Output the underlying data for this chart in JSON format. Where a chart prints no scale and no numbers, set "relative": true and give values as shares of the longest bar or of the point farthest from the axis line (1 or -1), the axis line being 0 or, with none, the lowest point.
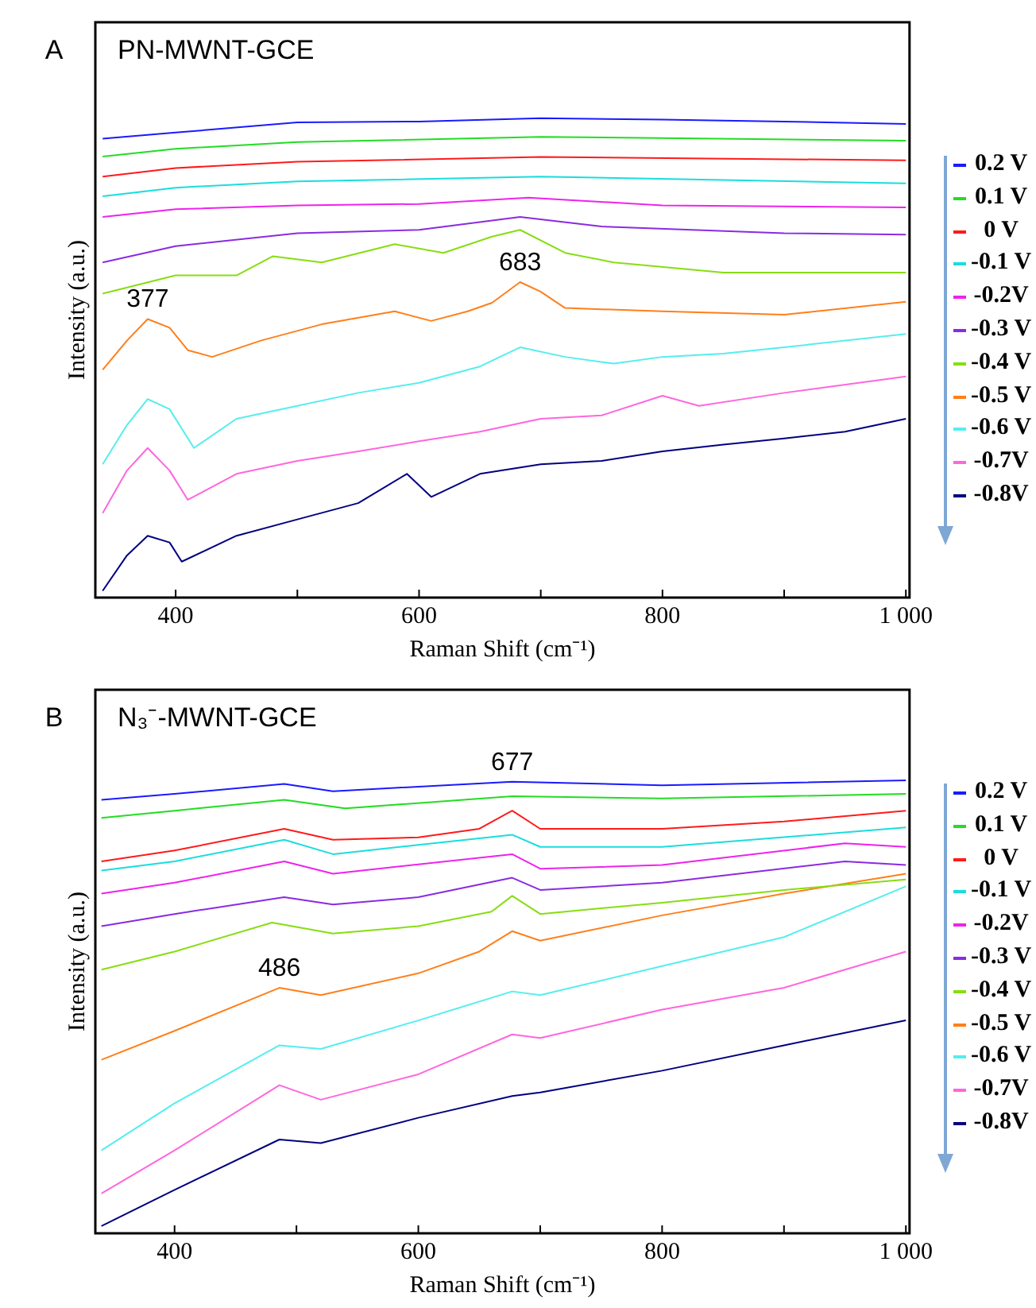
{
  "chart_data": [
    {
      "type": "line",
      "title": "PN-MWNT-GCE",
      "xlabel": "Raman Shift (cm⁻¹)",
      "ylabel": "Intensity (a.u.)",
      "relative": true,
      "legend": "right",
      "grid": false,
      "xlim": [
        334,
        1003
      ],
      "xticks": [
        400,
        {
          "value": 500,
          "label": null
        },
        600,
        {
          "value": 700,
          "label": null
        },
        800,
        {
          "value": 900,
          "label": null
        },
        {
          "value": 1000,
          "label": "1 000"
        }
      ],
      "annotations": [
        "A",
        {
          "text": "377",
          "x": 377,
          "y": 0.581
        },
        {
          "text": "683",
          "x": 683,
          "y": 0.658
        }
      ],
      "series": [
        {
          "name": "0.2 V",
          "color": "#1a1aff",
          "x": [
            340,
            400,
            500,
            600,
            700,
            800,
            900,
            1000
          ],
          "values": [
            0.957,
            0.97,
            0.991,
            0.993,
            1.0,
            0.997,
            0.993,
            0.988
          ]
        },
        {
          "name": "0.1 V",
          "color": "#22dd22",
          "x": [
            340,
            400,
            500,
            700,
            1000
          ],
          "values": [
            0.92,
            0.936,
            0.95,
            0.961,
            0.953
          ]
        },
        {
          "name": "0 V",
          "color": "#ff1a1a",
          "x": [
            340,
            400,
            500,
            700,
            1000
          ],
          "values": [
            0.878,
            0.896,
            0.909,
            0.919,
            0.912
          ]
        },
        {
          "name": "-0.1 V",
          "color": "#1adddd",
          "x": [
            340,
            400,
            500,
            700,
            1000
          ],
          "values": [
            0.837,
            0.855,
            0.868,
            0.878,
            0.864
          ]
        },
        {
          "name": "-0.2V",
          "color": "#ee22ee",
          "x": [
            340,
            400,
            500,
            600,
            690,
            800,
            1000
          ],
          "values": [
            0.794,
            0.81,
            0.818,
            0.821,
            0.834,
            0.818,
            0.814
          ]
        },
        {
          "name": "-0.3 V",
          "color": "#8a2be2",
          "x": [
            340,
            400,
            500,
            600,
            683,
            750,
            900,
            1000
          ],
          "values": [
            0.699,
            0.733,
            0.76,
            0.767,
            0.794,
            0.774,
            0.76,
            0.757
          ]
        },
        {
          "name": "-0.4 V",
          "color": "#88dd11",
          "x": [
            340,
            400,
            450,
            480,
            520,
            580,
            620,
            660,
            683,
            720,
            760,
            850,
            1000
          ],
          "values": [
            0.634,
            0.672,
            0.672,
            0.712,
            0.699,
            0.737,
            0.719,
            0.753,
            0.767,
            0.719,
            0.699,
            0.678,
            0.678
          ]
        },
        {
          "name": "-0.5 V",
          "color": "#ff7f1a",
          "x": [
            340,
            360,
            377,
            395,
            410,
            430,
            470,
            520,
            580,
            610,
            640,
            660,
            683,
            700,
            720,
            800,
            900,
            1000
          ],
          "values": [
            0.475,
            0.536,
            0.581,
            0.563,
            0.516,
            0.502,
            0.536,
            0.57,
            0.597,
            0.577,
            0.597,
            0.615,
            0.658,
            0.638,
            0.604,
            0.597,
            0.59,
            0.617
          ]
        },
        {
          "name": "-0.6 V",
          "color": "#55eeee",
          "x": [
            340,
            360,
            377,
            395,
            415,
            450,
            500,
            550,
            600,
            650,
            683,
            720,
            760,
            800,
            850,
            900,
            1000
          ],
          "values": [
            0.278,
            0.36,
            0.414,
            0.393,
            0.312,
            0.373,
            0.4,
            0.427,
            0.448,
            0.482,
            0.522,
            0.502,
            0.488,
            0.502,
            0.509,
            0.522,
            0.55
          ]
        },
        {
          "name": "-0.7V",
          "color": "#ff66dd",
          "x": [
            340,
            360,
            377,
            395,
            410,
            450,
            500,
            550,
            600,
            650,
            700,
            750,
            800,
            830,
            900,
            1000
          ],
          "values": [
            0.176,
            0.265,
            0.312,
            0.265,
            0.204,
            0.258,
            0.285,
            0.305,
            0.326,
            0.346,
            0.373,
            0.38,
            0.421,
            0.4,
            0.427,
            0.461
          ]
        },
        {
          "name": "-0.8V",
          "color": "#000080",
          "x": [
            340,
            360,
            377,
            395,
            405,
            450,
            500,
            550,
            590,
            610,
            650,
            700,
            750,
            800,
            850,
            900,
            950,
            1000
          ],
          "values": [
            0.014,
            0.088,
            0.129,
            0.115,
            0.075,
            0.129,
            0.163,
            0.197,
            0.258,
            0.21,
            0.258,
            0.278,
            0.285,
            0.305,
            0.319,
            0.332,
            0.346,
            0.373
          ]
        }
      ]
    },
    {
      "type": "line",
      "title": "N₃⁻-MWNT-GCE",
      "xlabel": "Raman Shift (cm⁻¹)",
      "ylabel": "Intensity (a.u.)",
      "relative": true,
      "legend": "right",
      "grid": false,
      "xlim": [
        335,
        1003
      ],
      "xticks": [
        400,
        {
          "value": 500,
          "label": null
        },
        600,
        {
          "value": 700,
          "label": null
        },
        800,
        {
          "value": 900,
          "label": null
        },
        {
          "value": 1000,
          "label": "1 000"
        }
      ],
      "annotations": [
        "B",
        {
          "text": "677",
          "x": 677,
          "y": 0.997
        },
        {
          "text": "486",
          "x": 486,
          "y": 0.542
        }
      ],
      "series": [
        {
          "name": "0.2 V",
          "color": "#1a1aff",
          "x": [
            340,
            400,
            490,
            530,
            677,
            800,
            1000
          ],
          "values": [
            0.957,
            0.97,
            0.992,
            0.976,
            0.997,
            0.989,
            1.0
          ]
        },
        {
          "name": "0.1 V",
          "color": "#22dd22",
          "x": [
            340,
            400,
            490,
            540,
            677,
            800,
            1000
          ],
          "values": [
            0.917,
            0.933,
            0.957,
            0.938,
            0.965,
            0.96,
            0.97
          ]
        },
        {
          "name": "0 V",
          "color": "#ff1a1a",
          "x": [
            340,
            400,
            490,
            530,
            600,
            650,
            677,
            700,
            800,
            900,
            1000
          ],
          "values": [
            0.821,
            0.845,
            0.893,
            0.869,
            0.874,
            0.893,
            0.933,
            0.893,
            0.893,
            0.909,
            0.933
          ]
        },
        {
          "name": "-0.1 V",
          "color": "#1adddd",
          "x": [
            340,
            400,
            490,
            530,
            677,
            700,
            800,
            1000
          ],
          "values": [
            0.801,
            0.821,
            0.869,
            0.837,
            0.88,
            0.853,
            0.853,
            0.896
          ]
        },
        {
          "name": "-0.2V",
          "color": "#ee22ee",
          "x": [
            340,
            400,
            490,
            530,
            677,
            700,
            800,
            950,
            1000
          ],
          "values": [
            0.75,
            0.774,
            0.821,
            0.794,
            0.837,
            0.805,
            0.813,
            0.861,
            0.853
          ]
        },
        {
          "name": "-0.3 V",
          "color": "#8a2be2",
          "x": [
            340,
            400,
            490,
            530,
            600,
            677,
            700,
            800,
            950,
            1000
          ],
          "values": [
            0.678,
            0.705,
            0.742,
            0.726,
            0.742,
            0.785,
            0.758,
            0.774,
            0.821,
            0.813
          ]
        },
        {
          "name": "-0.4 V",
          "color": "#88dd11",
          "x": [
            340,
            400,
            480,
            530,
            600,
            660,
            677,
            700,
            800,
            900,
            1000
          ],
          "values": [
            0.582,
            0.622,
            0.686,
            0.662,
            0.678,
            0.71,
            0.745,
            0.705,
            0.73,
            0.758,
            0.781
          ]
        },
        {
          "name": "-0.5 V",
          "color": "#ff7f1a",
          "x": [
            340,
            400,
            486,
            520,
            600,
            650,
            677,
            700,
            800,
            900,
            1000
          ],
          "values": [
            0.383,
            0.447,
            0.542,
            0.526,
            0.574,
            0.622,
            0.667,
            0.646,
            0.702,
            0.75,
            0.794
          ]
        },
        {
          "name": "-0.6 V",
          "color": "#55eeee",
          "x": [
            340,
            400,
            486,
            520,
            600,
            677,
            700,
            800,
            900,
            1000
          ],
          "values": [
            0.183,
            0.287,
            0.415,
            0.407,
            0.47,
            0.534,
            0.526,
            0.59,
            0.654,
            0.766
          ]
        },
        {
          "name": "-0.7V",
          "color": "#ff66dd",
          "x": [
            340,
            400,
            486,
            520,
            600,
            677,
            700,
            800,
            900,
            1000
          ],
          "values": [
            0.088,
            0.183,
            0.327,
            0.295,
            0.351,
            0.439,
            0.431,
            0.494,
            0.542,
            0.622
          ]
        },
        {
          "name": "-0.8V",
          "color": "#000080",
          "x": [
            340,
            400,
            486,
            520,
            600,
            677,
            700,
            800,
            900,
            1000
          ],
          "values": [
            0.016,
            0.096,
            0.207,
            0.199,
            0.255,
            0.303,
            0.311,
            0.359,
            0.415,
            0.47
          ]
        }
      ]
    }
  ]
}
